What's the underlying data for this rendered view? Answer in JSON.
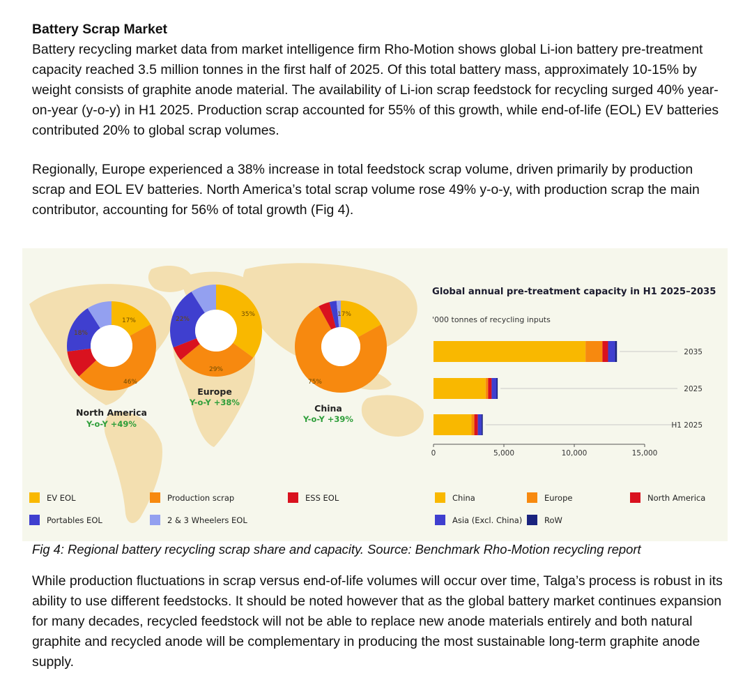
{
  "section_heading": "Battery Scrap Market",
  "paragraph_1": "Battery recycling market data from market intelligence firm Rho-Motion shows global Li-ion battery pre-treatment capacity reached 3.5 million tonnes in the first half of 2025. Of this total battery mass, approximately 10-15% by weight consists of graphite anode material.  The availability of Li-ion scrap feedstock for recycling surged 40% year-on-year (y-o-y) in H1 2025. Production scrap accounted for 55% of this growth, while end-of-life (EOL) EV batteries contributed 20% to global scrap volumes.",
  "paragraph_2": "Regionally, Europe experienced a 38% increase in total feedstock scrap volume, driven primarily by production scrap and EOL EV batteries. North America’s total scrap volume rose 49% y-o-y, with production scrap the main contributor, accounting for 56% of total growth (Fig 4).",
  "figure_caption": "Fig 4: Regional battery recycling scrap share and capacity. Source: Benchmark Rho-Motion recycling report",
  "paragraph_3": "While production fluctuations in scrap versus end-of-life volumes will occur over time, Talga’s process is robust in its ability to use different feedstocks. It should be noted however that as the global battery market continues expansion for many decades, recycled feedstock will not be able to replace new anode materials entirely and both natural graphite and recycled anode will be complementary in producing the most sustainable long-term graphite anode supply.",
  "colors": {
    "ev_eol": "#f9b800",
    "production_scrap": "#f7890f",
    "ess_eol": "#d9121f",
    "portables_eol": "#3f3fcf",
    "two_three_wheelers_eol": "#93a0f0",
    "china": "#f9b800",
    "europe": "#f7890f",
    "north_america": "#d9121f",
    "asia_excl_china": "#3f3fcf",
    "row": "#1a237e",
    "growth_text": "#2e9e3a",
    "map": "#f3dfb0",
    "figure_background": "#f6f7ec"
  },
  "figure": {
    "donuts": [
      {
        "region": "North America",
        "growth": "Y-o-Y +49%",
        "labels": [
          "17%",
          "46%",
          "18%"
        ],
        "shares": {
          "ev_eol": 17,
          "production_scrap": 46,
          "ess_eol": 10,
          "portables_eol": 18,
          "two_three_wheelers_eol": 9
        }
      },
      {
        "region": "Europe",
        "growth": "Y-o-Y +38%",
        "labels": [
          "35%",
          "29%",
          "22%"
        ],
        "shares": {
          "ev_eol": 35,
          "production_scrap": 29,
          "ess_eol": 5,
          "portables_eol": 22,
          "two_three_wheelers_eol": 9
        }
      },
      {
        "region": "China",
        "growth": "Y-o-Y +39%",
        "labels": [
          "17%",
          "75%"
        ],
        "shares": {
          "ev_eol": 17,
          "production_scrap": 75,
          "ess_eol": 4,
          "portables_eol": 2.5,
          "two_three_wheelers_eol": 1.5
        }
      }
    ],
    "donut_legend": [
      {
        "key": "ev_eol",
        "label": "EV EOL"
      },
      {
        "key": "production_scrap",
        "label": "Production scrap"
      },
      {
        "key": "ess_eol",
        "label": "ESS EOL"
      },
      {
        "key": "portables_eol",
        "label": "Portables EOL"
      },
      {
        "key": "two_three_wheelers_eol",
        "label": "2 & 3 Wheelers EOL"
      }
    ]
  },
  "chart_data": {
    "type": "bar",
    "orientation": "horizontal",
    "stacked": true,
    "title": "Global annual pre-treatment capacity in H1 2025–2035",
    "subtitle": "'000 tonnes of recycling inputs",
    "categories": [
      "2035",
      "2025",
      "H1 2025"
    ],
    "series": [
      {
        "name": "China",
        "color_key": "china",
        "values": [
          10800,
          3700,
          2700
        ]
      },
      {
        "name": "Europe",
        "color_key": "europe",
        "values": [
          1200,
          180,
          200
        ]
      },
      {
        "name": "North America",
        "color_key": "north_america",
        "values": [
          400,
          250,
          250
        ]
      },
      {
        "name": "Asia (Excl. China)",
        "color_key": "asia_excl_china",
        "values": [
          500,
          350,
          270
        ]
      },
      {
        "name": "RoW",
        "color_key": "row",
        "values": [
          130,
          80,
          80
        ]
      }
    ],
    "xlim": [
      0,
      15000
    ],
    "xticks": [
      0,
      5000,
      10000,
      15000
    ],
    "xtick_labels": [
      "0",
      "5,000",
      "10,000",
      "15,000"
    ],
    "legend_placement": "bottom",
    "grid": false
  }
}
